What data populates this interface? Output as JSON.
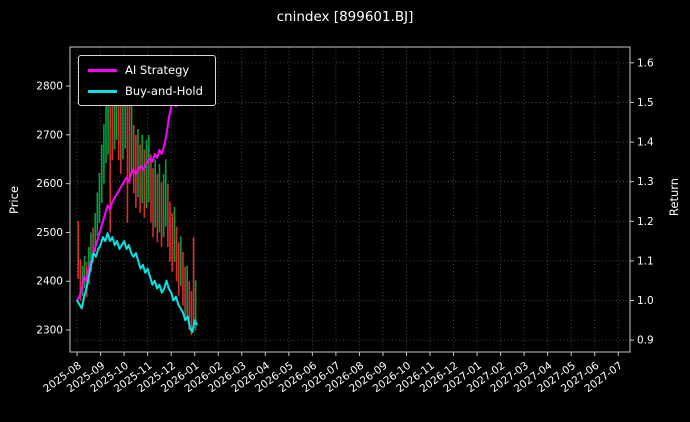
{
  "title": "cnindex [899601.BJ]",
  "axes": {
    "left_label": "Price",
    "right_label": "Return"
  },
  "legend": [
    {
      "label": "AI Strategy",
      "color": "#ff00ff"
    },
    {
      "label": "Buy-and-Hold",
      "color": "#00e5e5"
    }
  ],
  "colors": {
    "background": "#000000",
    "text": "#ffffff",
    "grid": "#5a5a5a",
    "spine": "#c8c8c8",
    "candle_up": "#00a040",
    "candle_down": "#d62f2f",
    "ai_strategy": "#ff00ff",
    "buy_and_hold": "#00e5e5"
  },
  "chart_data": {
    "type": "line",
    "title": "cnindex [899601.BJ]",
    "subtitle": "",
    "x_unit": "months since 2025-08",
    "x_range": [
      -0.3,
      23.5
    ],
    "grid": true,
    "legend_position": "upper left",
    "x_tick_labels": [
      "2025-08",
      "2025-09",
      "2025-10",
      "2025-11",
      "2025-12",
      "2026-01",
      "2026-02",
      "2026-03",
      "2026-04",
      "2026-05",
      "2026-06",
      "2026-07",
      "2026-08",
      "2026-09",
      "2026-10",
      "2026-11",
      "2026-12",
      "2027-01",
      "2027-02",
      "2027-03",
      "2027-04",
      "2027-05",
      "2027-06",
      "2027-07"
    ],
    "price_axis": {
      "label": "Price",
      "range": [
        2255,
        2880
      ],
      "ticks": [
        2300,
        2400,
        2500,
        2600,
        2700,
        2800
      ]
    },
    "return_axis": {
      "label": "Return",
      "range": [
        0.87,
        1.64
      ],
      "ticks": [
        0.9,
        1.0,
        1.1,
        1.2,
        1.3,
        1.4,
        1.5,
        1.6
      ]
    },
    "series": [
      {
        "name": "AI Strategy",
        "axis": "return",
        "color": "#ff00ff",
        "x": [
          0.0,
          0.1,
          0.2,
          0.3,
          0.4,
          0.5,
          0.6,
          0.7,
          0.8,
          0.9,
          1.0,
          1.1,
          1.2,
          1.3,
          1.4,
          1.5,
          1.6,
          1.7,
          1.8,
          1.9,
          2.0,
          2.1,
          2.2,
          2.3,
          2.4,
          2.5,
          2.6,
          2.7,
          2.8,
          2.9,
          3.0,
          3.1,
          3.2,
          3.3,
          3.4,
          3.5,
          3.6,
          3.7,
          3.8,
          3.9,
          4.0,
          4.1,
          4.2,
          4.3,
          4.4,
          4.5,
          4.6,
          4.7,
          4.8,
          4.9,
          5.0,
          5.08
        ],
        "y": [
          1.0,
          1.01,
          1.03,
          1.06,
          1.05,
          1.08,
          1.1,
          1.12,
          1.14,
          1.16,
          1.18,
          1.2,
          1.22,
          1.24,
          1.23,
          1.25,
          1.26,
          1.27,
          1.28,
          1.29,
          1.3,
          1.31,
          1.3,
          1.32,
          1.33,
          1.32,
          1.33,
          1.34,
          1.33,
          1.34,
          1.35,
          1.36,
          1.35,
          1.37,
          1.36,
          1.38,
          1.37,
          1.39,
          1.42,
          1.46,
          1.49,
          1.5,
          1.49,
          1.51,
          1.52,
          1.5,
          1.52,
          1.53,
          1.51,
          1.52,
          1.53,
          1.52
        ]
      },
      {
        "name": "Buy-and-Hold",
        "axis": "return",
        "color": "#00e5e5",
        "x": [
          0.0,
          0.1,
          0.2,
          0.3,
          0.4,
          0.5,
          0.6,
          0.7,
          0.8,
          0.9,
          1.0,
          1.1,
          1.2,
          1.3,
          1.4,
          1.5,
          1.6,
          1.7,
          1.8,
          1.9,
          2.0,
          2.1,
          2.2,
          2.3,
          2.4,
          2.5,
          2.6,
          2.7,
          2.8,
          2.9,
          3.0,
          3.1,
          3.2,
          3.3,
          3.4,
          3.5,
          3.6,
          3.7,
          3.8,
          3.9,
          4.0,
          4.1,
          4.2,
          4.3,
          4.4,
          4.5,
          4.6,
          4.7,
          4.8,
          4.9,
          5.0,
          5.08
        ],
        "y": [
          1.0,
          0.99,
          0.98,
          1.01,
          1.03,
          1.06,
          1.09,
          1.12,
          1.11,
          1.13,
          1.14,
          1.16,
          1.15,
          1.17,
          1.15,
          1.16,
          1.14,
          1.15,
          1.13,
          1.14,
          1.15,
          1.13,
          1.14,
          1.12,
          1.11,
          1.12,
          1.1,
          1.08,
          1.09,
          1.07,
          1.08,
          1.06,
          1.04,
          1.05,
          1.03,
          1.04,
          1.02,
          1.03,
          1.05,
          1.03,
          1.02,
          1.0,
          1.01,
          0.99,
          0.98,
          0.97,
          0.95,
          0.96,
          0.93,
          0.92,
          0.95,
          0.94
        ]
      }
    ],
    "candles": {
      "name": "Daily price high-low bars",
      "axis": "price",
      "up_color": "#00a040",
      "down_color": "#d62f2f",
      "points": [
        [
          0.05,
          2405,
          2523,
          "r"
        ],
        [
          0.14,
          2360,
          2445,
          "r"
        ],
        [
          0.23,
          2370,
          2432,
          "g"
        ],
        [
          0.32,
          2385,
          2452,
          "g"
        ],
        [
          0.41,
          2368,
          2440,
          "r"
        ],
        [
          0.5,
          2395,
          2470,
          "g"
        ],
        [
          0.59,
          2420,
          2500,
          "g"
        ],
        [
          0.68,
          2438,
          2510,
          "r"
        ],
        [
          0.77,
          2460,
          2540,
          "g"
        ],
        [
          0.86,
          2492,
          2582,
          "g"
        ],
        [
          0.95,
          2520,
          2622,
          "g"
        ],
        [
          1.05,
          2560,
          2680,
          "g"
        ],
        [
          1.14,
          2600,
          2722,
          "g"
        ],
        [
          1.23,
          2642,
          2780,
          "g"
        ],
        [
          1.32,
          2660,
          2820,
          "g"
        ],
        [
          1.41,
          2500,
          2840,
          "r"
        ],
        [
          1.5,
          2648,
          2800,
          "r"
        ],
        [
          1.59,
          2670,
          2830,
          "g"
        ],
        [
          1.68,
          2690,
          2852,
          "g"
        ],
        [
          1.77,
          2648,
          2810,
          "r"
        ],
        [
          1.86,
          2620,
          2782,
          "r"
        ],
        [
          1.95,
          2650,
          2800,
          "g"
        ],
        [
          2.05,
          2672,
          2822,
          "g"
        ],
        [
          2.14,
          2520,
          2790,
          "r"
        ],
        [
          2.23,
          2600,
          2760,
          "r"
        ],
        [
          2.32,
          2622,
          2772,
          "g"
        ],
        [
          2.41,
          2580,
          2720,
          "r"
        ],
        [
          2.5,
          2550,
          2700,
          "r"
        ],
        [
          2.59,
          2572,
          2712,
          "g"
        ],
        [
          2.68,
          2540,
          2680,
          "r"
        ],
        [
          2.77,
          2560,
          2700,
          "g"
        ],
        [
          2.86,
          2530,
          2670,
          "r"
        ],
        [
          2.95,
          2550,
          2690,
          "g"
        ],
        [
          3.05,
          2562,
          2700,
          "g"
        ],
        [
          3.14,
          2520,
          2660,
          "r"
        ],
        [
          3.23,
          2490,
          2632,
          "r"
        ],
        [
          3.32,
          2510,
          2650,
          "g"
        ],
        [
          3.41,
          2480,
          2620,
          "r"
        ],
        [
          3.5,
          2500,
          2640,
          "g"
        ],
        [
          3.59,
          2470,
          2602,
          "r"
        ],
        [
          3.68,
          2490,
          2620,
          "g"
        ],
        [
          3.77,
          2512,
          2650,
          "g"
        ],
        [
          3.86,
          2470,
          2600,
          "r"
        ],
        [
          3.95,
          2440,
          2562,
          "r"
        ],
        [
          4.05,
          2420,
          2540,
          "r"
        ],
        [
          4.14,
          2440,
          2552,
          "g"
        ],
        [
          4.23,
          2400,
          2512,
          "r"
        ],
        [
          4.32,
          2370,
          2480,
          "r"
        ],
        [
          4.41,
          2390,
          2492,
          "g"
        ],
        [
          4.5,
          2350,
          2460,
          "r"
        ],
        [
          4.59,
          2320,
          2430,
          "r"
        ],
        [
          4.68,
          2330,
          2432,
          "g"
        ],
        [
          4.77,
          2300,
          2400,
          "r"
        ],
        [
          4.86,
          2290,
          2380,
          "r"
        ],
        [
          4.95,
          2310,
          2490,
          "r"
        ],
        [
          5.04,
          2300,
          2402,
          "g"
        ]
      ]
    }
  }
}
